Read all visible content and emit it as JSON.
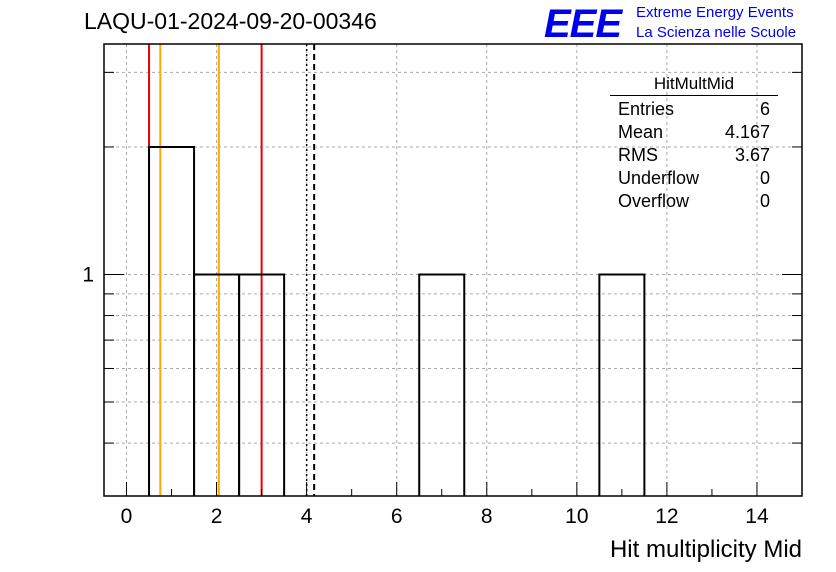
{
  "header": {
    "run_title": "LAQU-01-2024-09-20-00346",
    "logo_text": "EEE",
    "logo_line1": "Extreme Energy Events",
    "logo_line2": "La Scienza nelle Scuole"
  },
  "stats_box": {
    "title": "HitMultMid",
    "rows": [
      {
        "label": "Entries",
        "value": "6"
      },
      {
        "label": "Mean",
        "value": "4.167"
      },
      {
        "label": "RMS",
        "value": "3.67"
      },
      {
        "label": "Underflow",
        "value": "0"
      },
      {
        "label": "Overflow",
        "value": "0"
      }
    ]
  },
  "chart_data": {
    "type": "histogram",
    "title": "",
    "xlabel": "Hit multiplicity Mid",
    "ylabel": "",
    "xlim": [
      -0.5,
      15.0
    ],
    "y_scale": "log",
    "ylim": [
      0.3,
      3.5
    ],
    "x_ticks": [
      "0",
      "2",
      "4",
      "6",
      "8",
      "10",
      "12",
      "14"
    ],
    "y_ticks": [
      "1"
    ],
    "grid": true,
    "bins": [
      {
        "low": 0.5,
        "high": 1.5,
        "count": 2
      },
      {
        "low": 1.5,
        "high": 2.5,
        "count": 1
      },
      {
        "low": 2.5,
        "high": 3.5,
        "count": 1
      },
      {
        "low": 6.5,
        "high": 7.5,
        "count": 1
      },
      {
        "low": 10.5,
        "high": 11.5,
        "count": 1
      }
    ],
    "markers": [
      {
        "x": 0.5,
        "color": "#ee0000",
        "style": "solid"
      },
      {
        "x": 0.75,
        "color": "#ffaa00",
        "style": "solid"
      },
      {
        "x": 2.05,
        "color": "#ffaa00",
        "style": "solid"
      },
      {
        "x": 3.0,
        "color": "#ee0000",
        "style": "solid"
      },
      {
        "x": 4.0,
        "color": "#000000",
        "style": "dotted"
      },
      {
        "x": 4.167,
        "color": "#000000",
        "style": "dashed"
      }
    ],
    "colors": {
      "histogram": "#000000",
      "grid": "#aaaaaa",
      "logo": "#0000ee"
    }
  }
}
